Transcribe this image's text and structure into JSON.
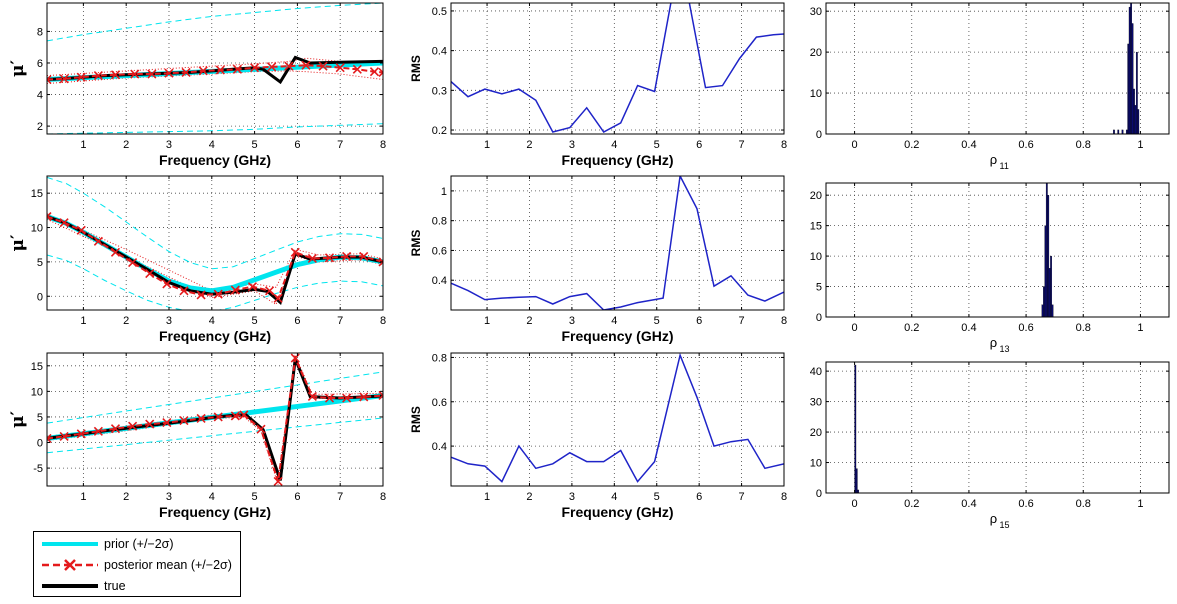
{
  "chart_data": [
    {
      "id": "mu1",
      "type": "line",
      "xlabel": "Frequency (GHz)",
      "ylabel": "μ′",
      "xlim": [
        0.15,
        8
      ],
      "ylim": [
        1.5,
        9.8
      ],
      "xticks": [
        1,
        2,
        3,
        4,
        5,
        6,
        7,
        8
      ],
      "yticks": [
        2,
        4,
        6,
        8
      ],
      "series": [
        {
          "name": "prior",
          "x": [
            0.15,
            8
          ],
          "y": [
            4.95,
            6.0
          ]
        },
        {
          "name": "prior-2sd-upper",
          "x": [
            0.15,
            1,
            2,
            3,
            4,
            5,
            6,
            7,
            8
          ],
          "y": [
            7.4,
            7.8,
            8.2,
            8.6,
            8.95,
            9.2,
            9.45,
            9.65,
            9.8
          ]
        },
        {
          "name": "prior-2sd-lower",
          "x": [
            0.15,
            1,
            2,
            3,
            4,
            5,
            6,
            7,
            8
          ],
          "y": [
            1.5,
            1.55,
            1.6,
            1.65,
            1.7,
            1.8,
            1.95,
            2.05,
            2.15
          ]
        },
        {
          "name": "true",
          "x": [
            0.15,
            0.5,
            1,
            1.5,
            2,
            2.5,
            3,
            3.5,
            4,
            4.5,
            5,
            5.2,
            5.6,
            5.95,
            6.3,
            7,
            8
          ],
          "y": [
            4.95,
            5.0,
            5.1,
            5.2,
            5.25,
            5.3,
            5.35,
            5.4,
            5.5,
            5.6,
            5.7,
            5.6,
            4.8,
            6.35,
            6.0,
            6.05,
            6.1
          ]
        },
        {
          "name": "posterior-mean",
          "x": [
            0.15,
            0.55,
            0.95,
            1.35,
            1.75,
            2.2,
            2.6,
            3.0,
            3.4,
            3.8,
            4.2,
            4.6,
            5.0,
            5.4,
            5.8,
            6.2,
            6.6,
            7.0,
            7.4,
            7.8,
            8.0
          ],
          "y": [
            4.95,
            5.0,
            5.1,
            5.2,
            5.25,
            5.3,
            5.3,
            5.35,
            5.4,
            5.5,
            5.55,
            5.6,
            5.7,
            5.75,
            5.8,
            5.85,
            5.8,
            5.7,
            5.6,
            5.45,
            5.4
          ]
        },
        {
          "name": "posterior-2sd-upper",
          "x": [
            0.15,
            2,
            4,
            5,
            5.8,
            6.2,
            7,
            8
          ],
          "y": [
            5.2,
            5.5,
            5.8,
            5.95,
            6.1,
            6.3,
            6.1,
            5.9
          ]
        },
        {
          "name": "posterior-2sd-lower",
          "x": [
            0.15,
            2,
            4,
            5,
            5.8,
            6.2,
            7,
            8
          ],
          "y": [
            4.7,
            5.05,
            5.3,
            5.45,
            5.5,
            5.45,
            5.3,
            4.95
          ]
        }
      ]
    },
    {
      "id": "rms1",
      "type": "line",
      "xlabel": "Frequency (GHz)",
      "ylabel": "RMS",
      "xlim": [
        0.15,
        8
      ],
      "ylim": [
        0.19,
        0.52
      ],
      "xticks": [
        1,
        2,
        3,
        4,
        5,
        6,
        7,
        8
      ],
      "yticks": [
        0.2,
        0.3,
        0.4,
        0.5
      ],
      "series": [
        {
          "name": "rms",
          "x": [
            0.15,
            0.55,
            0.95,
            1.35,
            1.75,
            2.15,
            2.55,
            2.95,
            3.35,
            3.75,
            4.15,
            4.55,
            4.95,
            5.35,
            5.75,
            6.15,
            6.55,
            6.95,
            7.35,
            7.75,
            8.0
          ],
          "y": [
            0.322,
            0.284,
            0.303,
            0.291,
            0.303,
            0.275,
            0.195,
            0.206,
            0.256,
            0.195,
            0.218,
            0.312,
            0.297,
            0.53,
            0.53,
            0.307,
            0.312,
            0.38,
            0.434,
            0.44,
            0.442
          ]
        }
      ]
    },
    {
      "id": "hist11",
      "type": "bar",
      "xlabel": "ρ",
      "xlabel_sub": "11",
      "xlim": [
        -0.1,
        1.1
      ],
      "ylim": [
        0,
        32
      ],
      "xticks": [
        0,
        0.2,
        0.4,
        0.6,
        0.8,
        1
      ],
      "yticks": [
        0,
        10,
        20,
        30
      ],
      "bins": [
        0.905,
        0.92,
        0.935,
        0.95,
        0.955,
        0.96,
        0.965,
        0.97,
        0.975,
        0.98,
        0.985,
        0.99
      ],
      "counts": [
        1,
        1,
        1,
        1,
        22,
        31,
        32,
        27,
        11,
        7,
        20,
        6
      ],
      "bin_width": 0.005
    },
    {
      "id": "mu2",
      "type": "line",
      "xlabel": "Frequency (GHz)",
      "ylabel": "μ′",
      "xlim": [
        0.15,
        8
      ],
      "ylim": [
        -2,
        17.5
      ],
      "xticks": [
        1,
        2,
        3,
        4,
        5,
        6,
        7,
        8
      ],
      "yticks": [
        0,
        5,
        10,
        15
      ],
      "series": [
        {
          "name": "prior",
          "x": [
            0.15,
            0.6,
            1,
            1.5,
            2,
            2.5,
            3,
            3.5,
            4,
            4.5,
            5,
            5.5,
            6,
            6.5,
            7,
            7.5,
            8
          ],
          "y": [
            11.6,
            10.6,
            9.3,
            7.5,
            5.7,
            3.9,
            2.2,
            1.2,
            0.8,
            1.3,
            2.4,
            3.5,
            4.6,
            5.3,
            5.7,
            5.6,
            5.0
          ]
        },
        {
          "name": "prior-2sd-upper",
          "x": [
            0.15,
            0.6,
            1,
            1.5,
            2,
            2.5,
            3,
            3.5,
            4,
            4.5,
            5,
            5.5,
            6,
            6.5,
            7,
            7.5,
            8
          ],
          "y": [
            17.3,
            16.4,
            15.0,
            13.0,
            10.8,
            8.6,
            6.5,
            4.9,
            4.0,
            4.3,
            5.5,
            6.7,
            7.9,
            8.7,
            9.1,
            9.0,
            8.4
          ]
        },
        {
          "name": "prior-2sd-lower",
          "x": [
            0.15,
            0.6,
            1,
            1.5,
            2,
            2.5,
            3,
            3.5,
            4,
            4.5,
            5,
            5.5,
            6,
            6.5,
            7,
            7.5,
            8
          ],
          "y": [
            6.0,
            5.2,
            4.0,
            2.3,
            0.8,
            -0.6,
            -1.6,
            -2.2,
            -2.2,
            -1.6,
            -0.6,
            0.4,
            1.3,
            1.9,
            2.2,
            2.1,
            1.5
          ]
        },
        {
          "name": "true",
          "x": [
            0.15,
            0.6,
            1,
            1.5,
            2,
            2.5,
            3,
            3.5,
            4,
            4.5,
            5,
            5.3,
            5.6,
            5.95,
            6.3,
            7,
            7.5,
            8
          ],
          "y": [
            11.6,
            10.6,
            9.3,
            7.5,
            5.7,
            3.9,
            2.0,
            0.8,
            0.3,
            0.6,
            1.0,
            0.7,
            -0.9,
            6.2,
            5.4,
            5.7,
            5.7,
            5.0
          ]
        },
        {
          "name": "posterior-mean",
          "x": [
            0.15,
            0.55,
            0.95,
            1.35,
            1.75,
            2.15,
            2.55,
            2.95,
            3.35,
            3.75,
            4.15,
            4.55,
            4.95,
            5.35,
            5.55,
            5.95,
            6.35,
            6.75,
            7.15,
            7.55,
            8.0
          ],
          "y": [
            11.6,
            10.7,
            9.6,
            8.0,
            6.4,
            4.9,
            3.3,
            1.8,
            0.8,
            0.2,
            0.3,
            0.9,
            1.4,
            0.8,
            -0.3,
            6.4,
            5.5,
            5.6,
            5.8,
            5.8,
            5.0
          ]
        },
        {
          "name": "posterior-2sd-upper",
          "x": [
            0.15,
            2,
            4,
            5,
            5.5,
            5.95,
            6.5,
            7.5,
            8
          ],
          "y": [
            12.0,
            6.8,
            0.8,
            1.8,
            1.3,
            6.8,
            6.0,
            6.2,
            5.4
          ]
        },
        {
          "name": "posterior-2sd-lower",
          "x": [
            0.15,
            2,
            4,
            5,
            5.5,
            5.95,
            6.5,
            7.5,
            8
          ],
          "y": [
            11.2,
            5.8,
            -0.2,
            0.8,
            -1.2,
            5.8,
            5.0,
            5.3,
            4.6
          ]
        }
      ]
    },
    {
      "id": "rms2",
      "type": "line",
      "xlabel": "Frequency (GHz)",
      "ylabel": "RMS",
      "xlim": [
        0.15,
        8
      ],
      "ylim": [
        0.2,
        1.1
      ],
      "xticks": [
        1,
        2,
        3,
        4,
        5,
        6,
        7,
        8
      ],
      "yticks": [
        0.4,
        0.6,
        0.8,
        1
      ],
      "series": [
        {
          "name": "rms",
          "x": [
            0.15,
            0.55,
            0.95,
            1.35,
            1.75,
            2.15,
            2.55,
            2.95,
            3.35,
            3.75,
            4.15,
            4.55,
            4.95,
            5.15,
            5.55,
            5.95,
            6.35,
            6.75,
            7.15,
            7.55,
            8.0
          ],
          "y": [
            0.38,
            0.33,
            0.27,
            0.28,
            0.285,
            0.29,
            0.24,
            0.29,
            0.31,
            0.2,
            0.22,
            0.25,
            0.27,
            0.28,
            1.1,
            0.88,
            0.36,
            0.43,
            0.3,
            0.26,
            0.32
          ]
        }
      ]
    },
    {
      "id": "hist13",
      "type": "bar",
      "xlabel": "ρ",
      "xlabel_sub": "13",
      "xlim": [
        -0.1,
        1.1
      ],
      "ylim": [
        0,
        22
      ],
      "xticks": [
        0,
        0.2,
        0.4,
        0.6,
        0.8,
        1
      ],
      "yticks": [
        0,
        5,
        10,
        15,
        20
      ],
      "bins": [
        0.655,
        0.66,
        0.665,
        0.67,
        0.675,
        0.68,
        0.685,
        0.69
      ],
      "counts": [
        2,
        5,
        15,
        22,
        20,
        8,
        10,
        2
      ],
      "bin_width": 0.005
    },
    {
      "id": "mu3",
      "type": "line",
      "xlabel": "Frequency (GHz)",
      "ylabel": "μ′",
      "xlim": [
        0.15,
        8
      ],
      "ylim": [
        -8.5,
        17.5
      ],
      "xticks": [
        1,
        2,
        3,
        4,
        5,
        6,
        7,
        8
      ],
      "yticks": [
        -5,
        0,
        5,
        10,
        15
      ],
      "series": [
        {
          "name": "prior",
          "x": [
            0.15,
            8
          ],
          "y": [
            0.8,
            9.2
          ]
        },
        {
          "name": "prior-2sd-upper",
          "x": [
            0.15,
            8
          ],
          "y": [
            3.8,
            13.8
          ]
        },
        {
          "name": "prior-2sd-lower",
          "x": [
            0.15,
            8
          ],
          "y": [
            -2.0,
            4.8
          ]
        },
        {
          "name": "true",
          "x": [
            0.15,
            0.5,
            1,
            1.5,
            2,
            2.5,
            3,
            3.5,
            4,
            4.5,
            4.8,
            5.2,
            5.6,
            5.95,
            6.3,
            6.7,
            7,
            7.5,
            8
          ],
          "y": [
            0.8,
            1.2,
            1.7,
            2.3,
            2.8,
            3.3,
            3.8,
            4.3,
            4.9,
            5.3,
            5.4,
            2.5,
            -7.4,
            16.4,
            9.0,
            8.8,
            8.7,
            8.9,
            9.1
          ]
        },
        {
          "name": "posterior-mean",
          "x": [
            0.15,
            0.55,
            0.95,
            1.35,
            1.75,
            2.15,
            2.55,
            2.95,
            3.35,
            3.75,
            4.15,
            4.55,
            4.75,
            5.15,
            5.55,
            5.95,
            6.35,
            6.75,
            7.15,
            7.55,
            8.0
          ],
          "y": [
            0.8,
            1.2,
            1.7,
            2.2,
            2.7,
            3.2,
            3.6,
            3.9,
            4.3,
            4.7,
            5.0,
            5.2,
            5.4,
            2.6,
            -7.6,
            16.5,
            9.0,
            8.7,
            8.7,
            8.9,
            9.2
          ]
        },
        {
          "name": "posterior-2sd-upper",
          "x": [
            0.15,
            2,
            4,
            4.75,
            5.15,
            5.55,
            5.95,
            6.35,
            8
          ],
          "y": [
            1.2,
            3.1,
            5.4,
            5.8,
            3.0,
            -7.0,
            17.0,
            9.4,
            9.6
          ]
        },
        {
          "name": "posterior-2sd-lower",
          "x": [
            0.15,
            2,
            4,
            4.75,
            5.15,
            5.55,
            5.95,
            6.35,
            8
          ],
          "y": [
            0.4,
            2.3,
            4.6,
            5.0,
            2.2,
            -8.2,
            16.0,
            8.6,
            8.8
          ]
        }
      ]
    },
    {
      "id": "rms3",
      "type": "line",
      "xlabel": "Frequency (GHz)",
      "ylabel": "RMS",
      "xlim": [
        0.15,
        8
      ],
      "ylim": [
        0.22,
        0.82
      ],
      "xticks": [
        1,
        2,
        3,
        4,
        5,
        6,
        7,
        8
      ],
      "yticks": [
        0.4,
        0.6,
        0.8
      ],
      "series": [
        {
          "name": "rms",
          "x": [
            0.15,
            0.55,
            0.95,
            1.35,
            1.75,
            2.15,
            2.55,
            2.95,
            3.35,
            3.75,
            4.15,
            4.55,
            4.95,
            5.55,
            5.95,
            6.35,
            6.75,
            7.15,
            7.55,
            8.0
          ],
          "y": [
            0.35,
            0.32,
            0.31,
            0.24,
            0.4,
            0.3,
            0.32,
            0.37,
            0.33,
            0.33,
            0.38,
            0.24,
            0.33,
            0.81,
            0.62,
            0.4,
            0.42,
            0.43,
            0.3,
            0.32
          ]
        }
      ]
    },
    {
      "id": "hist15",
      "type": "bar",
      "xlabel": "ρ",
      "xlabel_sub": "15",
      "xlim": [
        -0.1,
        1.1
      ],
      "ylim": [
        0,
        43
      ],
      "xticks": [
        0,
        0.2,
        0.4,
        0.6,
        0.8,
        1
      ],
      "yticks": [
        0,
        10,
        20,
        30,
        40
      ],
      "bins": [
        0.0,
        0.005,
        0.01
      ],
      "counts": [
        42,
        8,
        1
      ],
      "bin_width": 0.005
    }
  ],
  "legend": {
    "prior": "prior (+/−2σ)",
    "posterior": "posterior mean (+/−2σ)",
    "true": "true"
  },
  "colors": {
    "prior": "#00e5ee",
    "posterior": "#e41a1c",
    "true": "#000000",
    "rms": "#1f24c8",
    "hist": "#0a0a6e"
  }
}
